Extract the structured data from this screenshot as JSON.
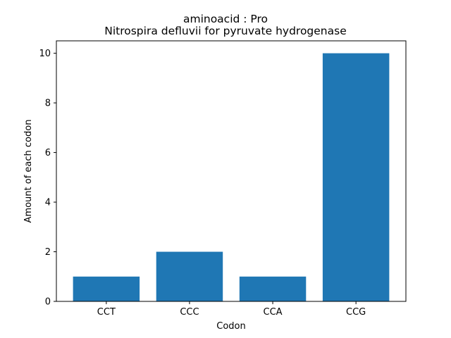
{
  "chart_data": {
    "type": "bar",
    "title_line1": "aminoacid : Pro",
    "title_line2": "Nitrospira defluvii for pyruvate hydrogenase",
    "xlabel": "Codon",
    "ylabel": "Amount of each codon",
    "categories": [
      "CCT",
      "CCC",
      "CCA",
      "CCG"
    ],
    "values": [
      1,
      2,
      1,
      10
    ],
    "ylim": [
      0,
      10.5
    ],
    "yticks": [
      0,
      2,
      4,
      6,
      8,
      10
    ],
    "bar_color": "#1f77b4",
    "grid": false
  }
}
